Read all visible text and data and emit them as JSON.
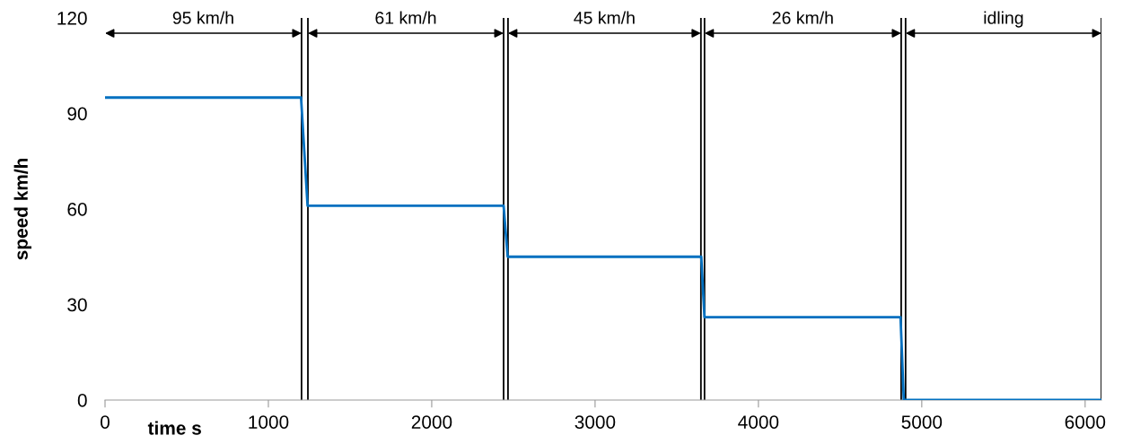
{
  "chart_data": {
    "type": "line",
    "xlabel": "time s",
    "ylabel": "speed km/h",
    "x": [
      0,
      1200,
      1240,
      2440,
      2465,
      3650,
      3670,
      4870,
      4890,
      6100
    ],
    "series": [
      {
        "color": "#0070c0",
        "values": [
          95,
          95,
          61,
          61,
          45,
          45,
          26,
          26,
          0,
          0
        ]
      }
    ],
    "xlim": [
      0,
      6100
    ],
    "xticks": [
      0,
      1000,
      2000,
      3000,
      4000,
      5000,
      6000
    ],
    "ylim": [
      0,
      120
    ],
    "yticks": [
      0,
      30,
      60,
      90,
      120
    ],
    "grid": false,
    "marker": "none",
    "line_style": "solid",
    "ref_lines": [
      {
        "axis": "x",
        "value": 1203,
        "color": "#000000"
      },
      {
        "axis": "x",
        "value": 1242,
        "color": "#000000"
      },
      {
        "axis": "x",
        "value": 2440,
        "color": "#000000"
      },
      {
        "axis": "x",
        "value": 2467,
        "color": "#000000"
      },
      {
        "axis": "x",
        "value": 3648,
        "color": "#000000"
      },
      {
        "axis": "x",
        "value": 3670,
        "color": "#000000"
      },
      {
        "axis": "x",
        "value": 4874,
        "color": "#000000"
      },
      {
        "axis": "x",
        "value": 4901,
        "color": "#000000"
      },
      {
        "axis": "x",
        "value": 6100,
        "color": "#000000"
      }
    ],
    "annotations": [
      "95 km/h",
      "61 km/h",
      "45 km/h",
      "26 km/h",
      "idling"
    ]
  }
}
